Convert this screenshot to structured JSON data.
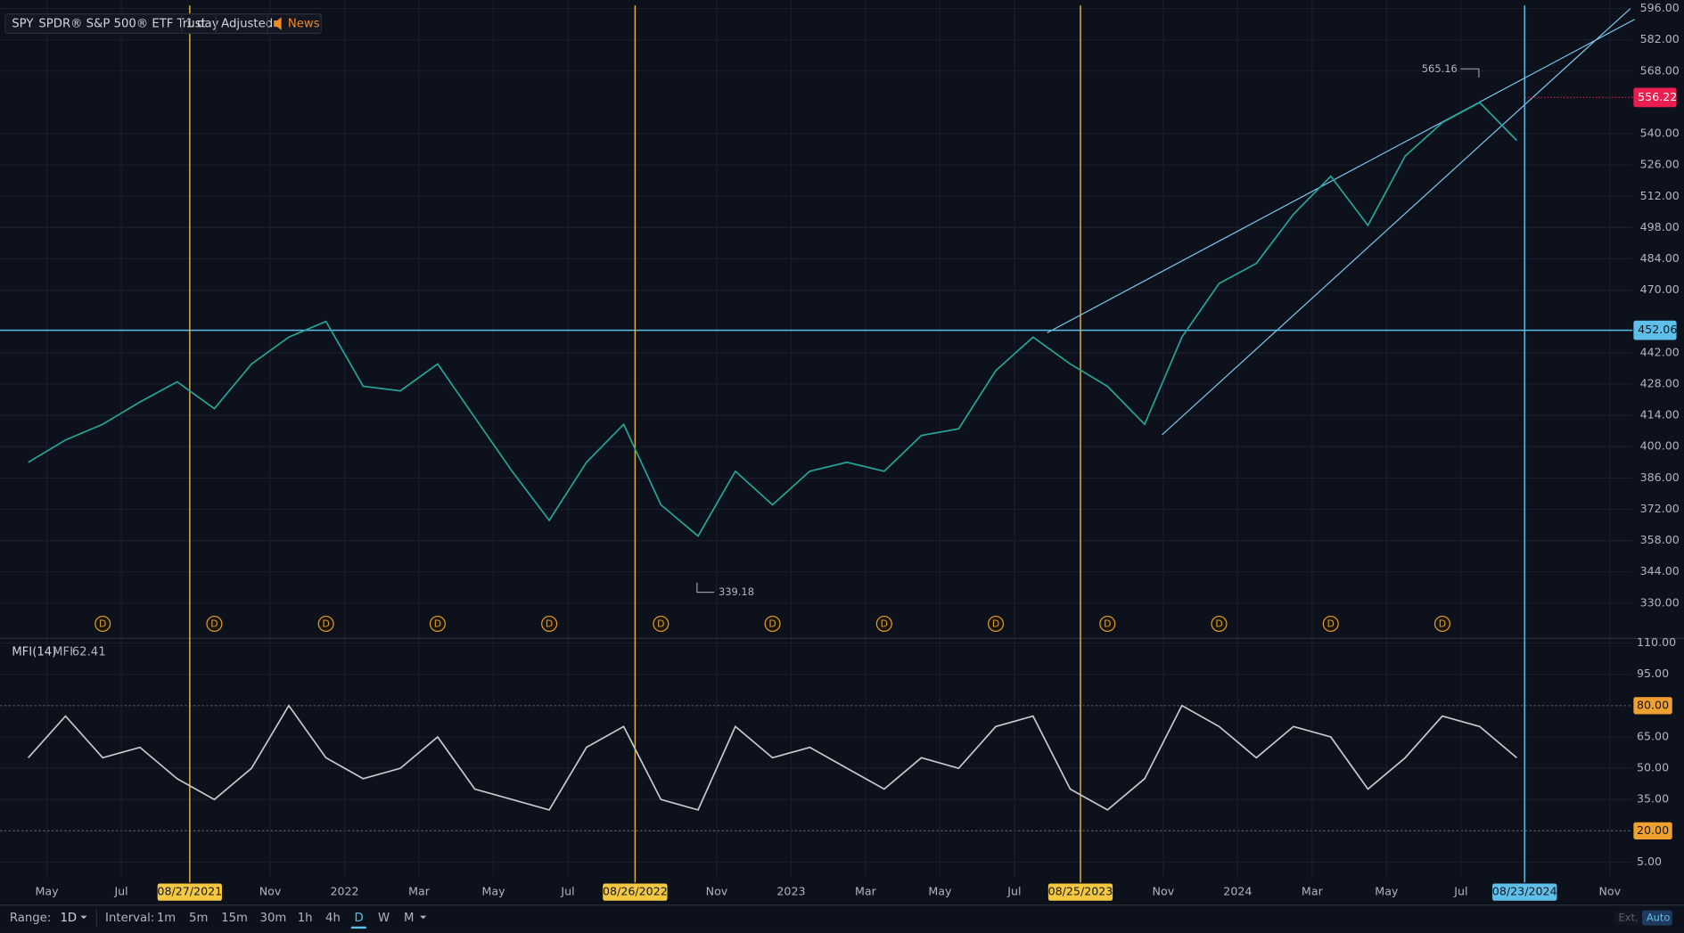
{
  "header": {
    "symbol": "SPY",
    "name": "SPDR® S&P 500® ETF Trust",
    "interval": "1 day",
    "adjustment": "Adjusted",
    "news": "News"
  },
  "chart_data": {
    "type": "line",
    "categories": [
      null,
      "May",
      null,
      "Jul",
      null,
      null,
      null,
      "Nov",
      null,
      "2022",
      null,
      "Mar",
      null,
      "May",
      null,
      "Jul",
      null,
      null,
      null,
      "Nov",
      null,
      "2023",
      null,
      "Mar",
      null,
      "May",
      null,
      "Jul",
      null,
      null,
      null,
      "Nov",
      null,
      "2024",
      null,
      "Mar",
      null,
      "May",
      null,
      "Jul",
      null,
      null,
      null,
      "Nov"
    ],
    "series": [
      {
        "name": "SPY",
        "color": "#26a69a",
        "values": [
          393,
          403,
          410,
          420,
          429,
          417,
          437,
          449,
          456,
          427,
          425,
          437,
          413,
          389,
          367,
          393,
          410,
          374,
          360,
          389,
          374,
          389,
          393,
          389,
          405,
          408,
          434,
          449,
          437,
          427,
          410,
          449,
          473,
          482,
          504,
          521,
          499,
          530,
          545,
          554,
          537,
          null,
          null,
          null
        ]
      }
    ],
    "ylim": [
      315,
      597.4
    ],
    "yticks": [
      {
        "value": 330,
        "label": "330.00"
      },
      {
        "value": 344,
        "label": "344.00"
      },
      {
        "value": 358,
        "label": "358.00"
      },
      {
        "value": 372,
        "label": "372.00"
      },
      {
        "value": 386,
        "label": "386.00"
      },
      {
        "value": 400,
        "label": "400.00"
      },
      {
        "value": 414,
        "label": "414.00"
      },
      {
        "value": 428,
        "label": "428.00"
      },
      {
        "value": 442,
        "label": "442.00"
      },
      {
        "value": 470,
        "label": "470.00"
      },
      {
        "value": 484,
        "label": "484.00"
      },
      {
        "value": 498,
        "label": "498.00"
      },
      {
        "value": 512,
        "label": "512.00"
      },
      {
        "value": 526,
        "label": "526.00"
      },
      {
        "value": 540,
        "label": "540.00"
      },
      {
        "value": 568,
        "label": "568.00"
      },
      {
        "value": 582,
        "label": "582.00"
      },
      {
        "value": 596,
        "label": "596.00"
      }
    ],
    "last_price": {
      "value": 556.22,
      "label": "556.22",
      "color": "#e91e4f"
    },
    "level_line": {
      "value": 452.06,
      "label": "452.06",
      "color": "#5ec0e8"
    },
    "high_label": 565.16,
    "low_label": 339.18,
    "dividend_label": "D",
    "date_markers": [
      "08/27/2021",
      "08/26/2022",
      "08/25/2023"
    ],
    "date_marker_color": "#e0b43c",
    "crosshair_date": "08/23/2024",
    "crosshair_color": "#5ec0e8",
    "grid": true
  },
  "mfi": {
    "type": "line",
    "title": "MFI(14)",
    "value_name": "MFI",
    "value": 62.41,
    "color": "#c8cad0",
    "values": [
      55,
      75,
      55,
      60,
      45,
      35,
      50,
      80,
      55,
      45,
      50,
      65,
      40,
      35,
      30,
      60,
      70,
      35,
      30,
      70,
      55,
      60,
      50,
      40,
      55,
      50,
      70,
      75,
      40,
      30,
      45,
      80,
      70,
      55,
      70,
      65,
      40,
      55,
      75,
      70,
      55,
      null,
      null,
      null
    ],
    "ylim": [
      -2.7,
      111.5
    ],
    "yticks": [
      {
        "value": 5,
        "label": "5.00"
      },
      {
        "value": 20,
        "label": "20.00"
      },
      {
        "value": 35,
        "label": "35.00"
      },
      {
        "value": 50,
        "label": "50.00"
      },
      {
        "value": 65,
        "label": "65.00"
      },
      {
        "value": 80,
        "label": "80.00"
      },
      {
        "value": 95,
        "label": "95.00"
      },
      {
        "value": 110,
        "label": "110.00"
      }
    ],
    "highlight_levels": [
      80,
      20
    ],
    "highlight_color": "#f0a030"
  },
  "toolbar": {
    "range_label": "Range:",
    "range": "1D",
    "interval_label": "Interval:",
    "intervals": [
      "1m",
      "5m",
      "15m",
      "30m",
      "1h",
      "4h",
      "D",
      "W",
      "M"
    ],
    "active_interval": "D",
    "ext": "Ext.",
    "auto": "Auto"
  }
}
